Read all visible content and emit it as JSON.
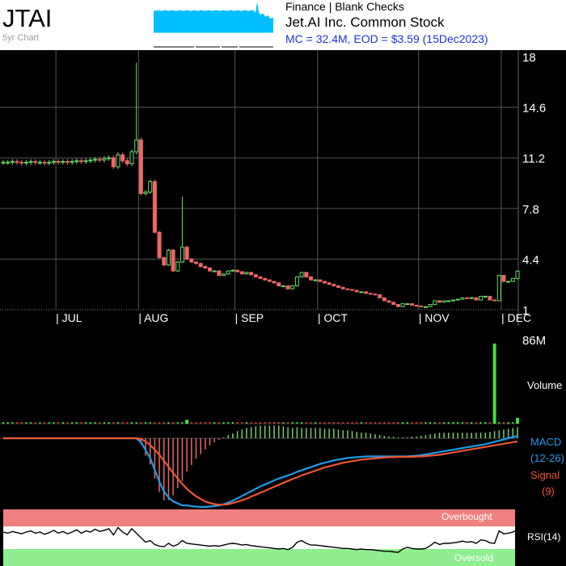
{
  "header": {
    "ticker": "JTAI",
    "subtitle": "5yr Chart",
    "sector": "Finance | Blank Checks",
    "company": "Jet.AI Inc. Common Stock",
    "stats": "MC = 32.4M, EOD = $3.59 (15Dec2023)"
  },
  "colors": {
    "background": "#000000",
    "up": "#66dd66",
    "down": "#ee6666",
    "macd": "#1e9be9",
    "signal": "#ee5533",
    "volume_up": "#44dd44",
    "volume_down": "#dd3333",
    "overbought": "#f08080",
    "oversold": "#90ee90",
    "sparkline": "#00bfff"
  },
  "chart_data": [
    {
      "type": "candlestick",
      "y_tick_labels": [
        "18",
        "14.6",
        "11.2",
        "7.8",
        "4.4",
        "1"
      ],
      "ylim": [
        1,
        18
      ],
      "x_tick_labels": [
        "| JUL",
        "| AUG",
        "| SEP",
        "| OCT",
        "| NOV",
        "| DEC"
      ],
      "grid": true,
      "close_series": [
        10.9,
        10.9,
        10.95,
        10.9,
        10.85,
        10.9,
        10.95,
        10.9,
        10.9,
        10.85,
        10.9,
        10.95,
        10.9,
        10.95,
        10.9,
        10.95,
        11.0,
        10.95,
        11.0,
        11.05,
        11.1,
        11.05,
        11.15,
        11.2,
        10.6,
        11.4,
        11.0,
        10.8,
        11.6,
        12.4,
        8.8,
        8.9,
        9.6,
        6.2,
        4.5,
        4.0,
        5.0,
        3.6,
        4.2,
        5.2,
        4.4,
        4.2,
        4.1,
        3.9,
        3.8,
        3.6,
        3.6,
        3.3,
        3.4,
        3.6,
        3.65,
        3.55,
        3.4,
        3.5,
        3.35,
        3.2,
        3.1,
        3.0,
        2.9,
        2.8,
        2.6,
        2.6,
        2.4,
        2.6,
        3.2,
        3.5,
        3.2,
        3.0,
        3.0,
        2.9,
        2.8,
        2.7,
        2.6,
        2.5,
        2.4,
        2.35,
        2.3,
        2.2,
        2.2,
        2.1,
        2.05,
        2.0,
        1.8,
        1.6,
        1.5,
        1.35,
        1.2,
        1.4,
        1.4,
        1.3,
        1.25,
        1.2,
        1.2,
        1.35,
        1.6,
        1.5,
        1.6,
        1.6,
        1.65,
        1.7,
        1.8,
        1.75,
        1.8,
        1.65,
        1.9,
        1.9,
        1.65,
        1.6,
        3.3,
        2.9,
        2.9,
        3.1,
        3.59
      ]
    },
    {
      "type": "bar",
      "name": "Volume",
      "max_label": "86M",
      "ylim": [
        0,
        86
      ],
      "spikes": [
        {
          "index": 40,
          "value": 4
        },
        {
          "index": 107,
          "value": 82
        },
        {
          "index": 112,
          "value": 6
        }
      ]
    },
    {
      "type": "line",
      "name": "MACD",
      "label": "MACD",
      "params": "(12-26)",
      "signal_label": "Signal",
      "signal_params": "(9)",
      "macd": [
        0,
        0,
        0,
        0,
        0,
        0,
        0,
        0,
        0,
        0,
        0,
        0,
        0,
        0,
        0,
        0,
        0,
        0,
        0,
        0,
        0,
        0,
        0,
        0,
        0,
        0,
        0,
        0,
        0,
        0,
        -0.1,
        -0.3,
        -0.5,
        -0.8,
        -1.1,
        -1.35,
        -1.5,
        -1.6,
        -1.65,
        -1.7,
        -1.7,
        -1.72,
        -1.73,
        -1.74,
        -1.74,
        -1.73,
        -1.72,
        -1.7,
        -1.67,
        -1.63,
        -1.58,
        -1.52,
        -1.46,
        -1.4,
        -1.34,
        -1.28,
        -1.22,
        -1.17,
        -1.12,
        -1.07,
        -1.02,
        -0.98,
        -0.94,
        -0.9,
        -0.85,
        -0.81,
        -0.77,
        -0.73,
        -0.69,
        -0.65,
        -0.62,
        -0.59,
        -0.56,
        -0.54,
        -0.52,
        -0.5,
        -0.49,
        -0.48,
        -0.47,
        -0.46,
        -0.46,
        -0.46,
        -0.46,
        -0.46,
        -0.46,
        -0.46,
        -0.46,
        -0.46,
        -0.46,
        -0.45,
        -0.44,
        -0.43,
        -0.41,
        -0.39,
        -0.37,
        -0.35,
        -0.33,
        -0.31,
        -0.29,
        -0.27,
        -0.25,
        -0.23,
        -0.21,
        -0.19,
        -0.17,
        -0.15,
        -0.12,
        -0.09,
        -0.06,
        -0.03,
        0.0,
        0.03,
        0.06
      ],
      "signal": [
        0,
        0,
        0,
        0,
        0,
        0,
        0,
        0,
        0,
        0,
        0,
        0,
        0,
        0,
        0,
        0,
        0,
        0,
        0,
        0,
        0,
        0,
        0,
        0,
        0,
        0,
        0,
        0,
        0,
        0,
        -0.02,
        -0.08,
        -0.17,
        -0.29,
        -0.42,
        -0.57,
        -0.72,
        -0.88,
        -1.02,
        -1.16,
        -1.28,
        -1.38,
        -1.47,
        -1.54,
        -1.6,
        -1.64,
        -1.67,
        -1.68,
        -1.68,
        -1.67,
        -1.64,
        -1.61,
        -1.57,
        -1.53,
        -1.48,
        -1.43,
        -1.38,
        -1.33,
        -1.28,
        -1.23,
        -1.18,
        -1.13,
        -1.08,
        -1.03,
        -0.99,
        -0.94,
        -0.9,
        -0.86,
        -0.82,
        -0.78,
        -0.74,
        -0.71,
        -0.68,
        -0.65,
        -0.62,
        -0.6,
        -0.58,
        -0.56,
        -0.54,
        -0.53,
        -0.52,
        -0.51,
        -0.5,
        -0.49,
        -0.48,
        -0.48,
        -0.47,
        -0.47,
        -0.47,
        -0.47,
        -0.46,
        -0.46,
        -0.45,
        -0.44,
        -0.43,
        -0.42,
        -0.4,
        -0.38,
        -0.36,
        -0.34,
        -0.32,
        -0.3,
        -0.28,
        -0.26,
        -0.24,
        -0.22,
        -0.2,
        -0.18,
        -0.16,
        -0.14,
        -0.12,
        -0.1,
        -0.08
      ]
    },
    {
      "type": "line",
      "name": "RSI",
      "label": "RSI(14)",
      "overbought_label": "Overbought",
      "oversold_label": "Oversold",
      "ylim": [
        0,
        100
      ],
      "overbought": 70,
      "oversold": 30,
      "values": [
        60,
        58,
        61,
        59,
        57,
        60,
        62,
        58,
        60,
        56,
        59,
        63,
        58,
        61,
        57,
        60,
        64,
        58,
        62,
        60,
        65,
        61,
        63,
        66,
        55,
        68,
        60,
        55,
        66,
        58,
        50,
        42,
        45,
        38,
        35,
        34,
        40,
        35,
        38,
        45,
        40,
        39,
        38,
        37,
        36,
        35,
        36,
        35,
        37,
        39,
        40,
        39,
        37,
        38,
        36,
        35,
        34,
        33,
        32,
        31,
        30,
        31,
        29,
        33,
        42,
        45,
        40,
        37,
        37,
        36,
        35,
        34,
        33,
        32,
        31,
        31,
        30,
        29,
        30,
        29,
        29,
        28,
        27,
        26,
        26,
        25,
        24,
        30,
        33,
        31,
        30,
        30,
        31,
        36,
        42,
        38,
        40,
        40,
        41,
        42,
        44,
        42,
        43,
        40,
        46,
        45,
        41,
        40,
        62,
        57,
        58,
        60,
        64
      ]
    }
  ]
}
